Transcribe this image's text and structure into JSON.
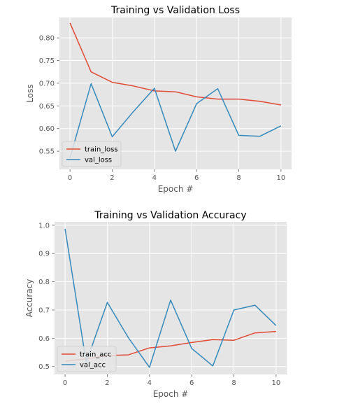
{
  "chart_data": [
    {
      "type": "line",
      "title": "Training vs Validation Loss",
      "xlabel": "Epoch #",
      "ylabel": "Loss",
      "xlim": [
        -0.5,
        10.5
      ],
      "ylim": [
        0.51,
        0.845
      ],
      "xticks": [
        0,
        2,
        4,
        6,
        8,
        10
      ],
      "yticks": [
        0.55,
        0.6,
        0.65,
        0.7,
        0.75,
        0.8
      ],
      "ytick_labels": [
        "0.55",
        "0.60",
        "0.65",
        "0.70",
        "0.75",
        "0.80"
      ],
      "grid": true,
      "legend": "lower-left",
      "x": [
        0,
        1,
        2,
        3,
        4,
        5,
        6,
        7,
        8,
        9,
        10
      ],
      "series": [
        {
          "name": "train_loss",
          "color": "#E24A33",
          "values": [
            0.833,
            0.725,
            0.702,
            0.694,
            0.683,
            0.681,
            0.67,
            0.665,
            0.665,
            0.66,
            0.652
          ]
        },
        {
          "name": "val_loss",
          "color": "#348ABD",
          "values": [
            0.535,
            0.699,
            0.582,
            0.637,
            0.689,
            0.55,
            0.655,
            0.688,
            0.585,
            0.583,
            0.606
          ]
        }
      ]
    },
    {
      "type": "line",
      "title": "Training vs Validation Accuracy",
      "xlabel": "Epoch #",
      "ylabel": "Accuracy",
      "xlim": [
        -0.5,
        10.5
      ],
      "ylim": [
        0.472,
        1.012
      ],
      "xticks": [
        0,
        2,
        4,
        6,
        8,
        10
      ],
      "yticks": [
        0.5,
        0.6,
        0.7,
        0.8,
        0.9,
        1.0
      ],
      "ytick_labels": [
        "0.5",
        "0.6",
        "0.7",
        "0.8",
        "0.9",
        "1.0"
      ],
      "grid": true,
      "legend": "lower-left",
      "x": [
        0,
        1,
        2,
        3,
        4,
        5,
        6,
        7,
        8,
        9,
        10
      ],
      "series": [
        {
          "name": "train_acc",
          "color": "#E24A33",
          "values": [
            0.519,
            0.527,
            0.539,
            0.541,
            0.566,
            0.573,
            0.585,
            0.595,
            0.593,
            0.619,
            0.624
          ]
        },
        {
          "name": "val_acc",
          "color": "#348ABD",
          "values": [
            0.987,
            0.514,
            0.727,
            0.602,
            0.497,
            0.735,
            0.564,
            0.502,
            0.7,
            0.717,
            0.645
          ]
        }
      ]
    }
  ]
}
